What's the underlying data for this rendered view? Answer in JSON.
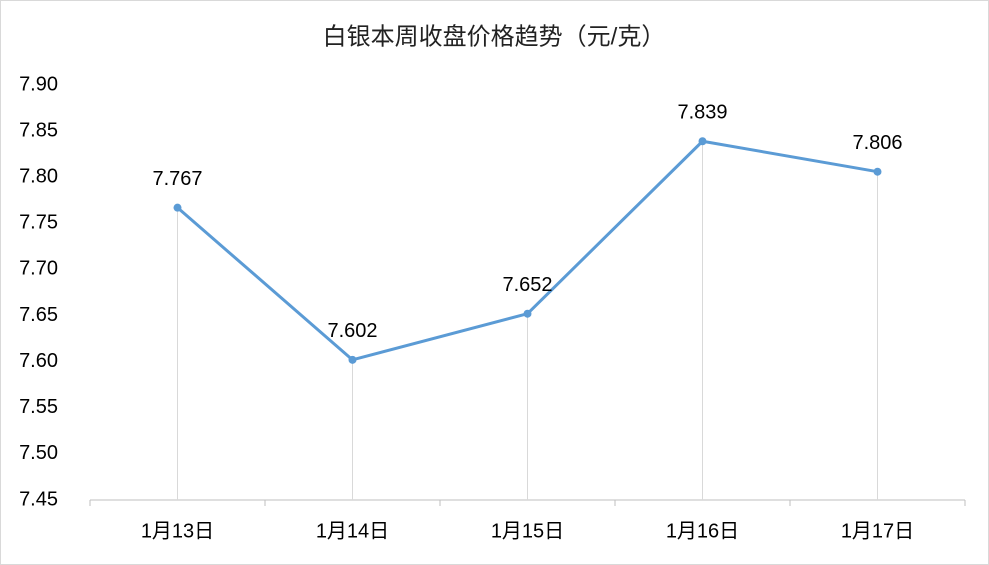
{
  "chart_data": {
    "type": "line",
    "title": "白银本周收盘价格趋势（元/克）",
    "categories": [
      "1月13日",
      "1月14日",
      "1月15日",
      "1月16日",
      "1月17日"
    ],
    "values": [
      7.767,
      7.602,
      7.652,
      7.839,
      7.806
    ],
    "color": "#5b9bd5",
    "ylim": [
      7.45,
      7.9
    ],
    "yticks": [
      7.45,
      {
        "value": 7.5,
        "label": "7.50"
      },
      7.55,
      {
        "value": 7.6,
        "label": "7.60"
      },
      7.65,
      {
        "value": 7.7,
        "label": "7.70"
      },
      7.75,
      {
        "value": 7.8,
        "label": "7.80"
      },
      7.85,
      {
        "value": 7.9,
        "label": "7.90"
      }
    ],
    "drop_lines": true
  }
}
